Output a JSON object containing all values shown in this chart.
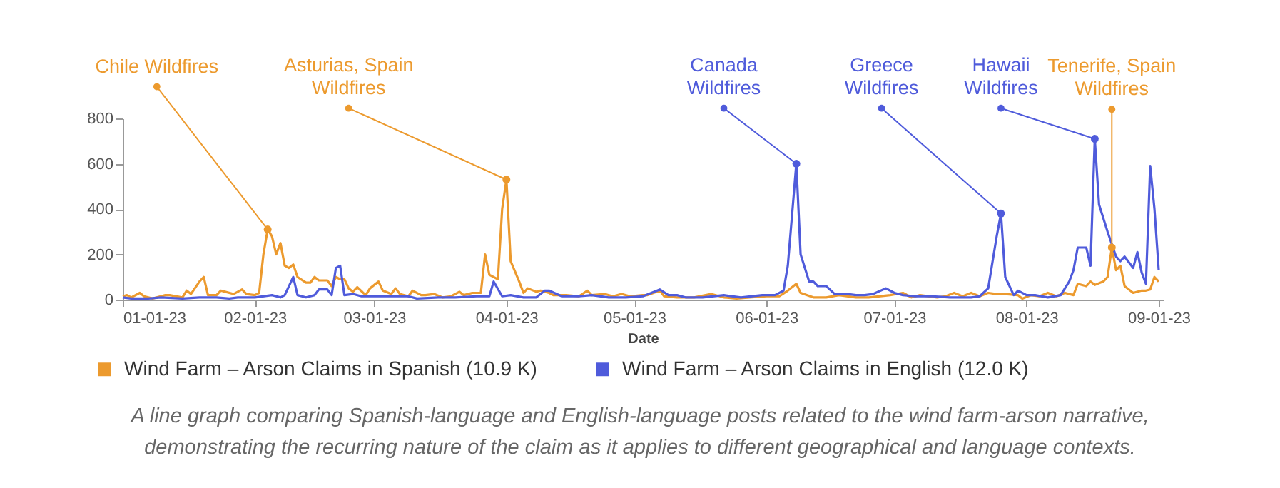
{
  "chart_data": {
    "type": "line",
    "xlabel": "Date",
    "legend": "bottom",
    "xlim": [
      "2023-01-01",
      "2023-09-02"
    ],
    "xticks": [
      {
        "value": "2023-01-01",
        "label": "01-01-23"
      },
      {
        "value": "2023-02-01",
        "label": "02-01-23"
      },
      {
        "value": "2023-03-01",
        "label": "03-01-23"
      },
      {
        "value": "2023-04-01",
        "label": "04-01-23"
      },
      {
        "value": "2023-05-01",
        "label": "05-01-23"
      },
      {
        "value": "2023-06-01",
        "label": "06-01-23"
      },
      {
        "value": "2023-07-01",
        "label": "07-01-23"
      },
      {
        "value": "2023-08-01",
        "label": "08-01-23"
      },
      {
        "value": "2023-09-01",
        "label": "09-01-23"
      }
    ],
    "ylim": [
      0,
      800
    ],
    "yticks": [
      0,
      200,
      400,
      600,
      800
    ],
    "series": [
      {
        "name": "Wind Farm – Arson Claims in Spanish (10.9 K)",
        "color": "#ec9a2e",
        "x": [
          "2023-01-01",
          "2023-01-02",
          "2023-01-03",
          "2023-01-05",
          "2023-01-06",
          "2023-01-08",
          "2023-01-11",
          "2023-01-12",
          "2023-01-15",
          "2023-01-16",
          "2023-01-17",
          "2023-01-19",
          "2023-01-20",
          "2023-01-21",
          "2023-01-23",
          "2023-01-24",
          "2023-01-25",
          "2023-01-27",
          "2023-01-29",
          "2023-01-30",
          "2023-02-01",
          "2023-02-02",
          "2023-02-03",
          "2023-02-04",
          "2023-02-05",
          "2023-02-06",
          "2023-02-07",
          "2023-02-08",
          "2023-02-09",
          "2023-02-10",
          "2023-02-11",
          "2023-02-13",
          "2023-02-14",
          "2023-02-15",
          "2023-02-16",
          "2023-02-18",
          "2023-02-19",
          "2023-02-20",
          "2023-02-21",
          "2023-02-22",
          "2023-02-23",
          "2023-02-24",
          "2023-02-25",
          "2023-02-27",
          "2023-02-28",
          "2023-03-02",
          "2023-03-03",
          "2023-03-05",
          "2023-03-06",
          "2023-03-07",
          "2023-03-09",
          "2023-03-10",
          "2023-03-12",
          "2023-03-13",
          "2023-03-15",
          "2023-03-17",
          "2023-03-19",
          "2023-03-21",
          "2023-03-22",
          "2023-03-24",
          "2023-03-26",
          "2023-03-27",
          "2023-03-28",
          "2023-03-30",
          "2023-03-31",
          "2023-04-01",
          "2023-04-02",
          "2023-04-04",
          "2023-04-05",
          "2023-04-06",
          "2023-04-08",
          "2023-04-09",
          "2023-04-11",
          "2023-04-12",
          "2023-04-15",
          "2023-04-18",
          "2023-04-20",
          "2023-04-21",
          "2023-04-24",
          "2023-04-26",
          "2023-04-28",
          "2023-04-30",
          "2023-05-03",
          "2023-05-04",
          "2023-05-07",
          "2023-05-08",
          "2023-05-11",
          "2023-05-15",
          "2023-05-19",
          "2023-05-22",
          "2023-05-25",
          "2023-05-28",
          "2023-06-01",
          "2023-06-04",
          "2023-06-06",
          "2023-06-08",
          "2023-06-09",
          "2023-06-12",
          "2023-06-15",
          "2023-06-18",
          "2023-06-22",
          "2023-06-25",
          "2023-06-30",
          "2023-07-03",
          "2023-07-05",
          "2023-07-07",
          "2023-07-11",
          "2023-07-13",
          "2023-07-15",
          "2023-07-17",
          "2023-07-19",
          "2023-07-21",
          "2023-07-23",
          "2023-07-25",
          "2023-07-27",
          "2023-07-30",
          "2023-07-31",
          "2023-08-02",
          "2023-08-04",
          "2023-08-06",
          "2023-08-08",
          "2023-08-10",
          "2023-08-12",
          "2023-08-13",
          "2023-08-15",
          "2023-08-16",
          "2023-08-17",
          "2023-08-19",
          "2023-08-20",
          "2023-08-21",
          "2023-08-22",
          "2023-08-23",
          "2023-08-24",
          "2023-08-26",
          "2023-08-28",
          "2023-08-29",
          "2023-08-30",
          "2023-08-31",
          "2023-09-01"
        ],
        "values": [
          15,
          20,
          10,
          30,
          15,
          5,
          20,
          20,
          10,
          40,
          25,
          80,
          100,
          20,
          20,
          40,
          35,
          25,
          45,
          25,
          20,
          30,
          200,
          310,
          280,
          200,
          250,
          150,
          140,
          155,
          100,
          75,
          75,
          100,
          85,
          85,
          60,
          100,
          90,
          90,
          50,
          35,
          55,
          20,
          50,
          80,
          40,
          25,
          50,
          25,
          15,
          40,
          20,
          20,
          25,
          10,
          15,
          35,
          20,
          30,
          30,
          200,
          110,
          90,
          400,
          530,
          170,
          80,
          30,
          50,
          35,
          40,
          30,
          20,
          20,
          15,
          40,
          20,
          25,
          15,
          25,
          15,
          20,
          20,
          40,
          15,
          10,
          10,
          25,
          10,
          5,
          10,
          15,
          15,
          40,
          70,
          30,
          10,
          10,
          20,
          10,
          10,
          20,
          30,
          10,
          20,
          10,
          15,
          30,
          15,
          30,
          15,
          30,
          25,
          25,
          20,
          5,
          20,
          15,
          30,
          15,
          30,
          20,
          70,
          60,
          80,
          65,
          80,
          100,
          230,
          130,
          150,
          60,
          30,
          40,
          40,
          45,
          100,
          80
        ]
      },
      {
        "name": "Wind Farm – Arson Claims in English (12.0 K)",
        "color": "#4f5bdb",
        "x": [
          "2023-01-01",
          "2023-01-03",
          "2023-01-07",
          "2023-01-10",
          "2023-01-15",
          "2023-01-19",
          "2023-01-23",
          "2023-01-26",
          "2023-01-28",
          "2023-02-01",
          "2023-02-05",
          "2023-02-07",
          "2023-02-08",
          "2023-02-10",
          "2023-02-11",
          "2023-02-13",
          "2023-02-15",
          "2023-02-16",
          "2023-02-18",
          "2023-02-19",
          "2023-02-20",
          "2023-02-21",
          "2023-02-22",
          "2023-02-24",
          "2023-02-26",
          "2023-02-28",
          "2023-03-05",
          "2023-03-09",
          "2023-03-11",
          "2023-03-16",
          "2023-03-20",
          "2023-03-25",
          "2023-03-28",
          "2023-03-29",
          "2023-03-31",
          "2023-04-02",
          "2023-04-05",
          "2023-04-08",
          "2023-04-10",
          "2023-04-11",
          "2023-04-14",
          "2023-04-18",
          "2023-04-21",
          "2023-04-25",
          "2023-04-29",
          "2023-05-03",
          "2023-05-07",
          "2023-05-09",
          "2023-05-11",
          "2023-05-13",
          "2023-05-17",
          "2023-05-22",
          "2023-05-26",
          "2023-05-31",
          "2023-06-03",
          "2023-06-05",
          "2023-06-06",
          "2023-06-08",
          "2023-06-09",
          "2023-06-11",
          "2023-06-12",
          "2023-06-13",
          "2023-06-15",
          "2023-06-17",
          "2023-06-20",
          "2023-06-22",
          "2023-06-24",
          "2023-06-26",
          "2023-06-29",
          "2023-07-01",
          "2023-07-03",
          "2023-07-06",
          "2023-07-10",
          "2023-07-14",
          "2023-07-19",
          "2023-07-21",
          "2023-07-23",
          "2023-07-25",
          "2023-07-26",
          "2023-07-27",
          "2023-07-29",
          "2023-07-30",
          "2023-08-01",
          "2023-08-03",
          "2023-08-06",
          "2023-08-09",
          "2023-08-11",
          "2023-08-12",
          "2023-08-13",
          "2023-08-15",
          "2023-08-16",
          "2023-08-17",
          "2023-08-18",
          "2023-08-20",
          "2023-08-22",
          "2023-08-23",
          "2023-08-24",
          "2023-08-26",
          "2023-08-27",
          "2023-08-28",
          "2023-08-29",
          "2023-08-30",
          "2023-08-31",
          "2023-09-01"
        ],
        "values": [
          10,
          5,
          5,
          10,
          5,
          10,
          10,
          5,
          10,
          10,
          20,
          10,
          20,
          100,
          20,
          10,
          20,
          45,
          45,
          20,
          140,
          150,
          20,
          25,
          15,
          15,
          15,
          15,
          5,
          10,
          10,
          15,
          15,
          80,
          15,
          20,
          10,
          10,
          40,
          40,
          15,
          15,
          20,
          10,
          10,
          15,
          45,
          20,
          20,
          10,
          10,
          20,
          10,
          20,
          20,
          40,
          150,
          600,
          200,
          80,
          80,
          60,
          60,
          25,
          25,
          20,
          20,
          25,
          50,
          30,
          20,
          15,
          15,
          10,
          10,
          15,
          50,
          280,
          380,
          100,
          20,
          40,
          20,
          20,
          10,
          20,
          80,
          130,
          230,
          230,
          150,
          710,
          420,
          300,
          190,
          170,
          190,
          140,
          210,
          120,
          70,
          590,
          400,
          130
        ]
      }
    ],
    "annotations": [
      {
        "text": "Chile Wildfires",
        "x": "2023-02-04",
        "y": 310
      },
      {
        "text": "Asturias, Spain Wildfires",
        "x": "2023-04-01",
        "y": 530
      },
      {
        "text": "Canada Wildfires",
        "x": "2023-06-08",
        "y": 600
      },
      {
        "text": "Greece Wildfires",
        "x": "2023-07-26",
        "y": 380
      },
      {
        "text": "Hawaii Wildfires",
        "x": "2023-08-17",
        "y": 710
      },
      {
        "text": "Tenerife, Spain Wildfires",
        "x": "2023-08-21",
        "y": 230
      },
      "A line graph comparing Spanish-language and English-language posts related to the wind farm-arson narrative, demonstrating the recurring nature of the claim as it applies to different geographical and language contexts."
    ]
  }
}
